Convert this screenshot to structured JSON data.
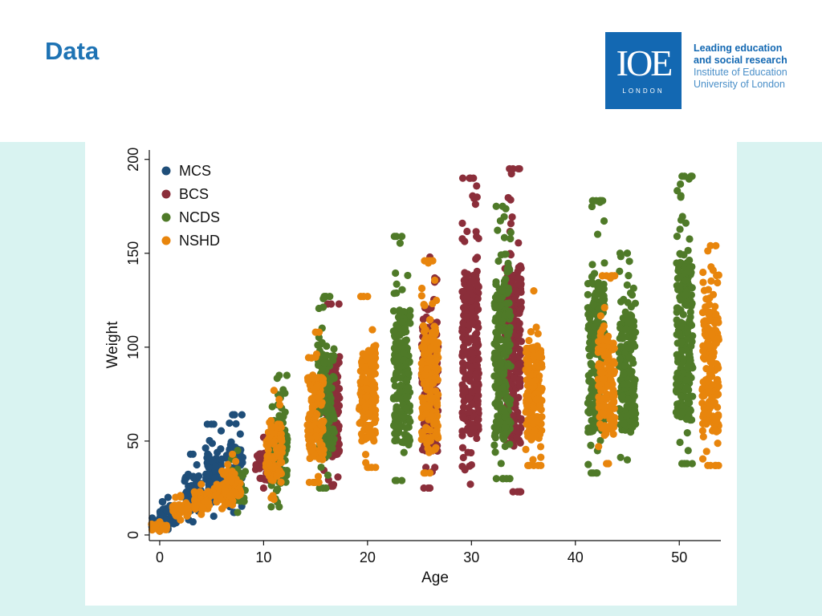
{
  "slide": {
    "title": "Data"
  },
  "logo": {
    "mark": "IOE",
    "sub": "LONDON",
    "line1": "Leading education",
    "line2": "and social research",
    "line3": "Institute of Education",
    "line4": "University of London"
  },
  "colors": {
    "title": "#1e73b4",
    "logo_bg": "#1368b2",
    "band": "#d9f3f1",
    "MCS": "#1f4e79",
    "BCS": "#8b2e3a",
    "NCDS": "#4f7a28",
    "NSHD": "#e8850c"
  },
  "chart_data": {
    "type": "scatter",
    "xlabel": "Age",
    "ylabel": "Weight",
    "xlim": [
      -1,
      54
    ],
    "ylim": [
      -3,
      205
    ],
    "xticks": [
      0,
      10,
      20,
      30,
      40,
      50
    ],
    "yticks": [
      0,
      50,
      100,
      150,
      200
    ],
    "grid": false,
    "legend_position": "top-left",
    "series": [
      {
        "name": "MCS",
        "color": "#1f4e79",
        "clusters": [
          {
            "x": 0.0,
            "ymin": 2,
            "ymax": 9
          },
          {
            "x": 0.8,
            "ymin": 3,
            "ymax": 20
          },
          {
            "x": 3.2,
            "ymin": 7,
            "ymax": 43
          },
          {
            "x": 5.2,
            "ymin": 10,
            "ymax": 59
          },
          {
            "x": 7.2,
            "ymin": 12,
            "ymax": 64
          }
        ]
      },
      {
        "name": "BCS",
        "color": "#8b2e3a",
        "clusters": [
          {
            "x": 10.0,
            "ymin": 25,
            "ymax": 52
          },
          {
            "x": 16.5,
            "ymin": 26,
            "ymax": 123
          },
          {
            "x": 26.0,
            "ymin": 25,
            "ymax": 148
          },
          {
            "x": 29.9,
            "ymin": 27,
            "ymax": 190
          },
          {
            "x": 34.0,
            "ymin": 23,
            "ymax": 195
          }
        ]
      },
      {
        "name": "NCDS",
        "color": "#4f7a28",
        "clusters": [
          {
            "x": 7.5,
            "ymin": 12,
            "ymax": 45
          },
          {
            "x": 11.5,
            "ymin": 15,
            "ymax": 85
          },
          {
            "x": 16.0,
            "ymin": 25,
            "ymax": 127
          },
          {
            "x": 23.3,
            "ymin": 29,
            "ymax": 159
          },
          {
            "x": 33.0,
            "ymin": 30,
            "ymax": 175
          },
          {
            "x": 42.0,
            "ymin": 33,
            "ymax": 178
          },
          {
            "x": 45.0,
            "ymin": 40,
            "ymax": 150
          },
          {
            "x": 50.5,
            "ymin": 38,
            "ymax": 191
          }
        ]
      },
      {
        "name": "NSHD",
        "color": "#e8850c",
        "clusters": [
          {
            "x": 0.0,
            "ymin": 2,
            "ymax": 7
          },
          {
            "x": 2.0,
            "ymin": 8,
            "ymax": 21
          },
          {
            "x": 4.0,
            "ymin": 11,
            "ymax": 27
          },
          {
            "x": 6.0,
            "ymin": 14,
            "ymax": 34
          },
          {
            "x": 7.0,
            "ymin": 16,
            "ymax": 43
          },
          {
            "x": 11.0,
            "ymin": 19,
            "ymax": 77
          },
          {
            "x": 15.0,
            "ymin": 28,
            "ymax": 108
          },
          {
            "x": 20.0,
            "ymin": 36,
            "ymax": 127
          },
          {
            "x": 26.0,
            "ymin": 33,
            "ymax": 146
          },
          {
            "x": 36.0,
            "ymin": 37,
            "ymax": 130
          },
          {
            "x": 43.0,
            "ymin": 38,
            "ymax": 138
          },
          {
            "x": 53.0,
            "ymin": 37,
            "ymax": 154
          }
        ]
      }
    ]
  }
}
